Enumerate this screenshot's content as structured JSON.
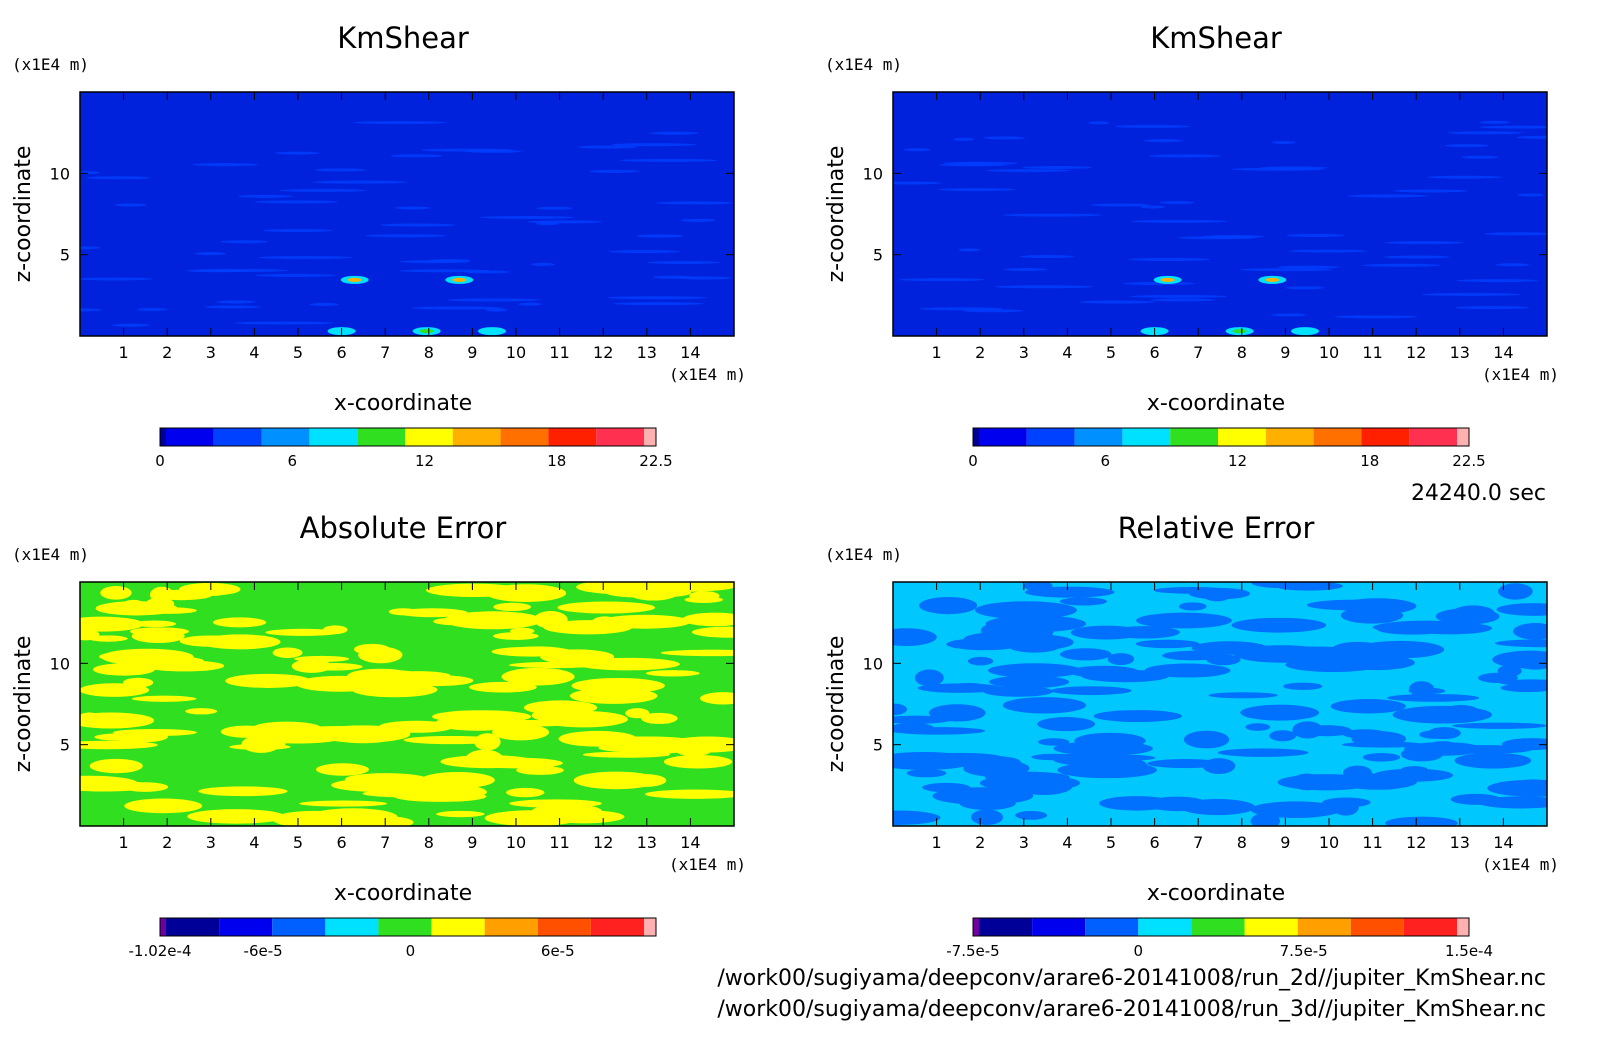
{
  "time_label": "24240.0 sec",
  "footer": {
    "path_1": "/work00/sugiyama/deepconv/arare6-20141008/run_2d//jupiter_KmShear.nc",
    "path_2": "/work00/sugiyama/deepconv/arare6-20141008/run_3d//jupiter_KmShear.nc"
  },
  "chart_data": [
    {
      "type": "heatmap",
      "title": "KmShear",
      "xlabel": "x-coordinate",
      "ylabel": "z-coordinate",
      "x_unit": "(x1E4 m)",
      "y_unit": "(x1E4 m)",
      "xlim": [
        0,
        15
      ],
      "ylim": [
        0,
        15
      ],
      "xticks": [
        "1",
        "2",
        "3",
        "4",
        "5",
        "6",
        "7",
        "8",
        "9",
        "10",
        "11",
        "12",
        "13",
        "14"
      ],
      "yticks": [
        "5",
        "10"
      ],
      "colorbar": {
        "range": [
          0,
          22.5
        ],
        "labels": [
          "0",
          "6",
          "12",
          "18",
          "22.5"
        ],
        "colors": [
          "#000099",
          "#0000ee",
          "#0040ff",
          "#0090ff",
          "#00e0ff",
          "#30e020",
          "#ffff00",
          "#ffb000",
          "#ff7000",
          "#ff2000",
          "#ff3050",
          "#ffb0b0"
        ]
      },
      "background_color": "#0022dd"
    },
    {
      "type": "heatmap",
      "title": "KmShear",
      "xlabel": "x-coordinate",
      "ylabel": "z-coordinate",
      "x_unit": "(x1E4 m)",
      "y_unit": "(x1E4 m)",
      "xlim": [
        0,
        15
      ],
      "ylim": [
        0,
        15
      ],
      "xticks": [
        "1",
        "2",
        "3",
        "4",
        "5",
        "6",
        "7",
        "8",
        "9",
        "10",
        "11",
        "12",
        "13",
        "14"
      ],
      "yticks": [
        "5",
        "10"
      ],
      "colorbar": {
        "range": [
          0,
          22.5
        ],
        "labels": [
          "0",
          "6",
          "12",
          "18",
          "22.5"
        ],
        "colors": [
          "#000099",
          "#0000ee",
          "#0040ff",
          "#0090ff",
          "#00e0ff",
          "#30e020",
          "#ffff00",
          "#ffb000",
          "#ff7000",
          "#ff2000",
          "#ff3050",
          "#ffb0b0"
        ]
      },
      "background_color": "#0022dd"
    },
    {
      "type": "heatmap",
      "title": "Absolute Error",
      "xlabel": "x-coordinate",
      "ylabel": "z-coordinate",
      "x_unit": "(x1E4 m)",
      "y_unit": "(x1E4 m)",
      "xlim": [
        0,
        15
      ],
      "ylim": [
        0,
        15
      ],
      "xticks": [
        "1",
        "2",
        "3",
        "4",
        "5",
        "6",
        "7",
        "8",
        "9",
        "10",
        "11",
        "12",
        "13",
        "14"
      ],
      "yticks": [
        "5",
        "10"
      ],
      "colorbar": {
        "range": [
          -0.000102,
          0.0001
        ],
        "labels": [
          "-1.02e-4",
          "-6e-5",
          "0",
          "6e-5"
        ],
        "colors": [
          "#7000a0",
          "#000099",
          "#0000ee",
          "#0060ff",
          "#00e0ff",
          "#30e020",
          "#ffff00",
          "#ffa000",
          "#ff5000",
          "#ff2020",
          "#ffb0b0"
        ]
      },
      "background_color": "#30e020",
      "pattern_color": "#ffff00"
    },
    {
      "type": "heatmap",
      "title": "Relative Error",
      "xlabel": "x-coordinate",
      "ylabel": "z-coordinate",
      "x_unit": "(x1E4 m)",
      "y_unit": "(x1E4 m)",
      "xlim": [
        0,
        15
      ],
      "ylim": [
        0,
        15
      ],
      "xticks": [
        "1",
        "2",
        "3",
        "4",
        "5",
        "6",
        "7",
        "8",
        "9",
        "10",
        "11",
        "12",
        "13",
        "14"
      ],
      "yticks": [
        "5",
        "10"
      ],
      "colorbar": {
        "range": [
          -7.5e-05,
          0.00015
        ],
        "labels": [
          "-7.5e-5",
          "0",
          "7.5e-5",
          "1.5e-4"
        ],
        "colors": [
          "#7000a0",
          "#000099",
          "#0000ee",
          "#0060ff",
          "#00e0ff",
          "#30e020",
          "#ffff00",
          "#ffa000",
          "#ff5000",
          "#ff2020",
          "#ffb0b0"
        ]
      },
      "background_color": "#00c8ff",
      "pattern_color": "#0070ff"
    }
  ]
}
